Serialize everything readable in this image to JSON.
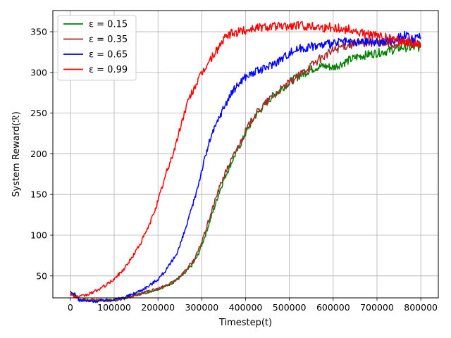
{
  "chart_data": {
    "type": "line",
    "xlabel": "Timestep(t)",
    "ylabel": "System Reward(ℛ)",
    "xlim": [
      -40000,
      840000
    ],
    "ylim": [
      23,
      376
    ],
    "xticks": [
      0,
      100000,
      200000,
      300000,
      400000,
      500000,
      600000,
      700000,
      800000
    ],
    "xtick_labels": [
      "0",
      "100000",
      "200000",
      "300000",
      "400000",
      "500000",
      "600000",
      "700000",
      "800000"
    ],
    "yticks": [
      50,
      100,
      150,
      200,
      250,
      300,
      350
    ],
    "ytick_labels": [
      "50",
      "100",
      "150",
      "200",
      "250",
      "300",
      "350"
    ],
    "grid": true,
    "legend_position": "top-left",
    "series": [
      {
        "name": "ε = 0.15",
        "color": "#008000",
        "x": [
          0,
          10000,
          20000,
          40000,
          60000,
          80000,
          100000,
          120000,
          140000,
          160000,
          180000,
          200000,
          220000,
          240000,
          260000,
          280000,
          290000,
          300000,
          310000,
          320000,
          330000,
          340000,
          350000,
          360000,
          370000,
          380000,
          390000,
          400000,
          420000,
          440000,
          460000,
          480000,
          500000,
          520000,
          540000,
          560000,
          580000,
          600000,
          620000,
          640000,
          660000,
          680000,
          700000,
          720000,
          740000,
          760000,
          780000,
          800000
        ],
        "values": [
          30,
          28,
          21,
          20,
          20,
          20,
          20,
          22,
          25,
          28,
          31,
          34,
          38,
          44,
          52,
          65,
          74,
          88,
          103,
          120,
          136,
          153,
          168,
          180,
          192,
          203,
          213,
          225,
          245,
          258,
          270,
          279,
          288,
          295,
          301,
          306,
          308,
          306,
          311,
          316,
          320,
          322,
          324,
          326,
          328,
          331,
          330,
          331
        ]
      },
      {
        "name": "ε = 0.35",
        "color": "#a52a2a",
        "x": [
          0,
          10000,
          20000,
          40000,
          60000,
          80000,
          100000,
          120000,
          140000,
          160000,
          180000,
          200000,
          220000,
          240000,
          260000,
          280000,
          290000,
          300000,
          310000,
          320000,
          330000,
          340000,
          350000,
          360000,
          370000,
          380000,
          390000,
          400000,
          420000,
          440000,
          460000,
          480000,
          500000,
          520000,
          540000,
          560000,
          580000,
          600000,
          620000,
          640000,
          660000,
          680000,
          700000,
          720000,
          740000,
          760000,
          780000,
          800000
        ],
        "values": [
          28,
          26,
          21,
          20,
          20,
          20,
          20,
          22,
          25,
          28,
          31,
          34,
          38,
          45,
          55,
          68,
          78,
          92,
          108,
          125,
          142,
          158,
          172,
          184,
          195,
          206,
          216,
          228,
          247,
          259,
          270,
          279,
          287,
          295,
          305,
          313,
          320,
          327,
          332,
          334,
          336,
          337,
          336,
          335,
          334,
          338,
          336,
          333
        ]
      },
      {
        "name": "ε = 0.65",
        "color": "#0000ff",
        "x": [
          0,
          10000,
          20000,
          40000,
          60000,
          80000,
          100000,
          120000,
          140000,
          160000,
          180000,
          200000,
          210000,
          220000,
          230000,
          240000,
          250000,
          260000,
          270000,
          280000,
          290000,
          300000,
          310000,
          320000,
          330000,
          340000,
          350000,
          360000,
          370000,
          380000,
          390000,
          400000,
          420000,
          440000,
          460000,
          480000,
          500000,
          520000,
          540000,
          560000,
          580000,
          600000,
          620000,
          640000,
          660000,
          680000,
          700000,
          720000,
          740000,
          760000,
          780000,
          800000
        ],
        "values": [
          30,
          27,
          20,
          19,
          19,
          20,
          21,
          23,
          27,
          32,
          38,
          46,
          52,
          58,
          66,
          75,
          87,
          103,
          120,
          138,
          158,
          180,
          200,
          220,
          232,
          245,
          257,
          267,
          276,
          283,
          290,
          295,
          300,
          304,
          310,
          316,
          324,
          329,
          331,
          333,
          334,
          335,
          338,
          336,
          337,
          338,
          337,
          338,
          340,
          347,
          340,
          343
        ]
      },
      {
        "name": "ε = 0.99",
        "color": "#ff0000",
        "x": [
          0,
          10000,
          20000,
          40000,
          60000,
          80000,
          100000,
          120000,
          140000,
          160000,
          170000,
          180000,
          190000,
          200000,
          210000,
          220000,
          230000,
          240000,
          250000,
          260000,
          270000,
          280000,
          290000,
          300000,
          310000,
          320000,
          330000,
          340000,
          350000,
          360000,
          370000,
          380000,
          390000,
          400000,
          420000,
          440000,
          460000,
          480000,
          500000,
          520000,
          540000,
          560000,
          580000,
          600000,
          620000,
          640000,
          660000,
          680000,
          700000,
          720000,
          740000,
          760000,
          780000,
          800000
        ],
        "values": [
          28,
          25,
          24,
          27,
          32,
          38,
          46,
          57,
          72,
          90,
          101,
          112,
          127,
          142,
          160,
          178,
          193,
          210,
          230,
          250,
          266,
          278,
          289,
          298,
          308,
          316,
          324,
          332,
          340,
          346,
          348,
          349,
          351,
          352,
          355,
          356,
          357,
          356,
          357,
          358,
          357,
          357,
          355,
          356,
          353,
          353,
          348,
          347,
          345,
          343,
          340,
          339,
          336,
          334
        ]
      }
    ]
  }
}
